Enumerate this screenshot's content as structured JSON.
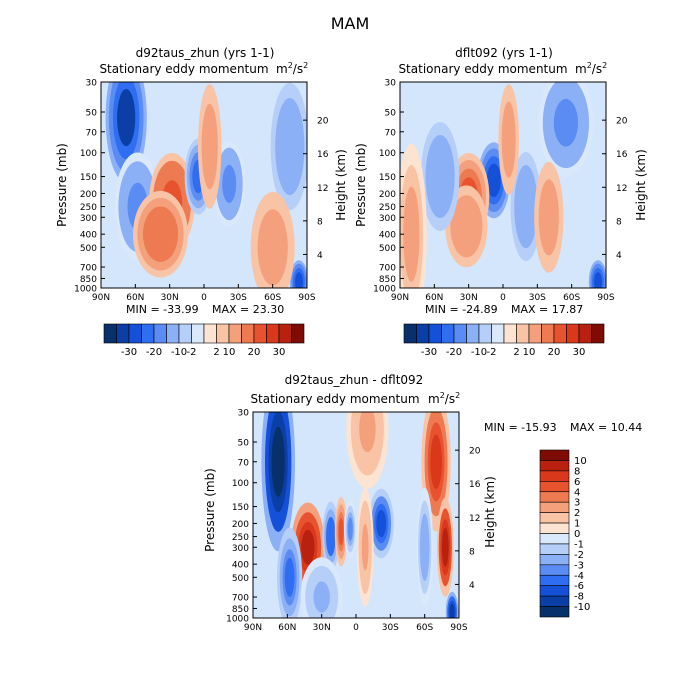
{
  "figure": {
    "title": "MAM"
  },
  "colors": {
    "neg": [
      "#08306b",
      "#0b3fa6",
      "#1450d8",
      "#2f6ef0",
      "#5b8cf3",
      "#8bb0f6",
      "#b6cff9",
      "#d9e8fb"
    ],
    "pos": [
      "#fde4d2",
      "#f9c3a6",
      "#f4a07c",
      "#ee7a52",
      "#e6532e",
      "#d9381b",
      "#b82010",
      "#7f0b05"
    ],
    "panel_bg": "#d3e6fb"
  },
  "chart_data": [
    {
      "id": "top-left",
      "type": "heatmap",
      "title": "d92taus_zhun (yrs 1-1)",
      "subtitle": "Stationary eddy momentum",
      "units": "m²/s²",
      "units_base": "m",
      "units_sup1": "2",
      "units_sep": "/s",
      "units_sup2": "2",
      "xticks": [
        "90N",
        "60N",
        "30N",
        "0",
        "30S",
        "60S",
        "90S"
      ],
      "xlim": [
        90,
        -90
      ],
      "yticks": [
        "30",
        "50",
        "70",
        "100",
        "150",
        "200",
        "250",
        "300",
        "400",
        "500",
        "700",
        "850",
        "1000"
      ],
      "ylabel": "Pressure (mb)",
      "y2ticks": [
        "20",
        "16",
        "12",
        "8",
        "4"
      ],
      "y2label": "Height (km)",
      "ylim_mb": [
        1000,
        30
      ],
      "min_label": "MIN = -33.99",
      "max_label": "MAX = 23.30",
      "min": -33.99,
      "max": 23.3,
      "colorbar_labels": [
        "-30",
        "-20",
        "-10",
        "-2",
        "2",
        "10",
        "20",
        "30"
      ],
      "features": [
        {
          "lat": 68,
          "p": 55,
          "v": -26,
          "sx": 9,
          "sy": 0.6
        },
        {
          "lat": 58,
          "p": 250,
          "v": -8,
          "sx": 10,
          "sy": 0.5
        },
        {
          "lat": 28,
          "p": 230,
          "v": 18,
          "sx": 10,
          "sy": 0.45
        },
        {
          "lat": 38,
          "p": 400,
          "v": 10,
          "sx": 12,
          "sy": 0.4
        },
        {
          "lat": 5,
          "p": 150,
          "v": -15,
          "sx": 6,
          "sy": 0.35
        },
        {
          "lat": -22,
          "p": 170,
          "v": -8,
          "sx": 7,
          "sy": 0.4
        },
        {
          "lat": -75,
          "p": 90,
          "v": -6,
          "sx": 10,
          "sy": 0.7
        },
        {
          "lat": -5,
          "p": 90,
          "v": 2.5,
          "sx": 8,
          "sy": 0.9
        },
        {
          "lat": -83,
          "p": 900,
          "v": -20,
          "sx": 4,
          "sy": 0.2
        },
        {
          "lat": -60,
          "p": 500,
          "v": 2.5,
          "sx": 15,
          "sy": 0.8
        }
      ]
    },
    {
      "id": "top-right",
      "type": "heatmap",
      "title": "dflt092 (yrs 1-1)",
      "subtitle": "Stationary eddy momentum",
      "units": "m²/s²",
      "units_base": "m",
      "units_sup1": "2",
      "units_sep": "/s",
      "units_sup2": "2",
      "xticks": [
        "90N",
        "60N",
        "30N",
        "0",
        "30S",
        "60S",
        "90S"
      ],
      "xlim": [
        90,
        -90
      ],
      "yticks": [
        "30",
        "50",
        "70",
        "100",
        "150",
        "200",
        "250",
        "300",
        "400",
        "500",
        "700",
        "850",
        "1000"
      ],
      "ylabel": "Pressure (mb)",
      "y2ticks": [
        "20",
        "16",
        "12",
        "8",
        "4"
      ],
      "y2label": "Height (km)",
      "ylim_mb": [
        1000,
        30
      ],
      "min_label": "MIN = -24.89",
      "max_label": "MAX = 17.87",
      "min": -24.89,
      "max": 17.87,
      "colorbar_labels": [
        "-30",
        "-20",
        "-10",
        "-2",
        "2",
        "10",
        "20",
        "30"
      ],
      "features": [
        {
          "lat": 8,
          "p": 160,
          "v": -20,
          "sx": 7,
          "sy": 0.35
        },
        {
          "lat": 30,
          "p": 210,
          "v": 14,
          "sx": 9,
          "sy": 0.4
        },
        {
          "lat": 32,
          "p": 350,
          "v": 6,
          "sx": 11,
          "sy": 0.45
        },
        {
          "lat": 55,
          "p": 150,
          "v": -5,
          "sx": 10,
          "sy": 0.6
        },
        {
          "lat": -55,
          "p": 60,
          "v": -8,
          "sx": 12,
          "sy": 0.5
        },
        {
          "lat": -20,
          "p": 250,
          "v": -4,
          "sx": 8,
          "sy": 0.6
        },
        {
          "lat": 80,
          "p": 400,
          "v": 3,
          "sx": 8,
          "sy": 1.0
        },
        {
          "lat": -40,
          "p": 300,
          "v": 2.5,
          "sx": 10,
          "sy": 0.8
        },
        {
          "lat": -83,
          "p": 900,
          "v": -20,
          "sx": 4,
          "sy": 0.2
        },
        {
          "lat": -5,
          "p": 80,
          "v": 2.5,
          "sx": 7,
          "sy": 0.8
        }
      ]
    },
    {
      "id": "bottom",
      "type": "heatmap",
      "title": "d92taus_zhun - dflt092",
      "subtitle": "Stationary eddy momentum",
      "units": "m²/s²",
      "units_base": "m",
      "units_sup1": "2",
      "units_sep": "/s",
      "units_sup2": "2",
      "xticks": [
        "90N",
        "60N",
        "30N",
        "0",
        "30S",
        "60S",
        "90S"
      ],
      "xlim": [
        90,
        -90
      ],
      "yticks": [
        "30",
        "50",
        "70",
        "100",
        "150",
        "200",
        "250",
        "300",
        "400",
        "500",
        "700",
        "850",
        "1000"
      ],
      "ylabel": "Pressure (mb)",
      "y2ticks": [
        "20",
        "16",
        "12",
        "8",
        "4"
      ],
      "y2label": "Height (km)",
      "ylim_mb": [
        1000,
        30
      ],
      "min_label": "MIN = -15.93",
      "max_label": "MAX =  10.44",
      "min": -15.93,
      "max": 10.44,
      "colorbar_labels": [
        "10",
        "8",
        "6",
        "4",
        "3",
        "2",
        "1",
        "0",
        "-1",
        "-2",
        "-3",
        "-4",
        "-6",
        "-8",
        "-10"
      ],
      "features": [
        {
          "lat": 68,
          "p": 70,
          "v": -14,
          "sx": 8,
          "sy": 0.9
        },
        {
          "lat": 42,
          "p": 300,
          "v": 10,
          "sx": 8,
          "sy": 0.45
        },
        {
          "lat": 58,
          "p": 500,
          "v": -5,
          "sx": 6,
          "sy": 0.5
        },
        {
          "lat": 22,
          "p": 250,
          "v": -6,
          "sx": 4,
          "sy": 0.35
        },
        {
          "lat": 13,
          "p": 230,
          "v": 5,
          "sx": 3,
          "sy": 0.35
        },
        {
          "lat": 5,
          "p": 220,
          "v": -4,
          "sx": 3,
          "sy": 0.3
        },
        {
          "lat": -22,
          "p": 200,
          "v": -8,
          "sx": 6,
          "sy": 0.35
        },
        {
          "lat": -8,
          "p": 300,
          "v": 2.5,
          "sx": 4,
          "sy": 0.6
        },
        {
          "lat": -70,
          "p": 70,
          "v": 7,
          "sx": 7,
          "sy": 0.7
        },
        {
          "lat": -78,
          "p": 300,
          "v": 9,
          "sx": 4,
          "sy": 0.5
        },
        {
          "lat": -60,
          "p": 300,
          "v": -3,
          "sx": 4,
          "sy": 0.6
        },
        {
          "lat": -10,
          "p": 40,
          "v": 2.5,
          "sx": 10,
          "sy": 0.6
        },
        {
          "lat": -84,
          "p": 900,
          "v": -10,
          "sx": 3,
          "sy": 0.2
        },
        {
          "lat": 30,
          "p": 700,
          "v": -2.5,
          "sx": 10,
          "sy": 0.4
        }
      ]
    }
  ]
}
